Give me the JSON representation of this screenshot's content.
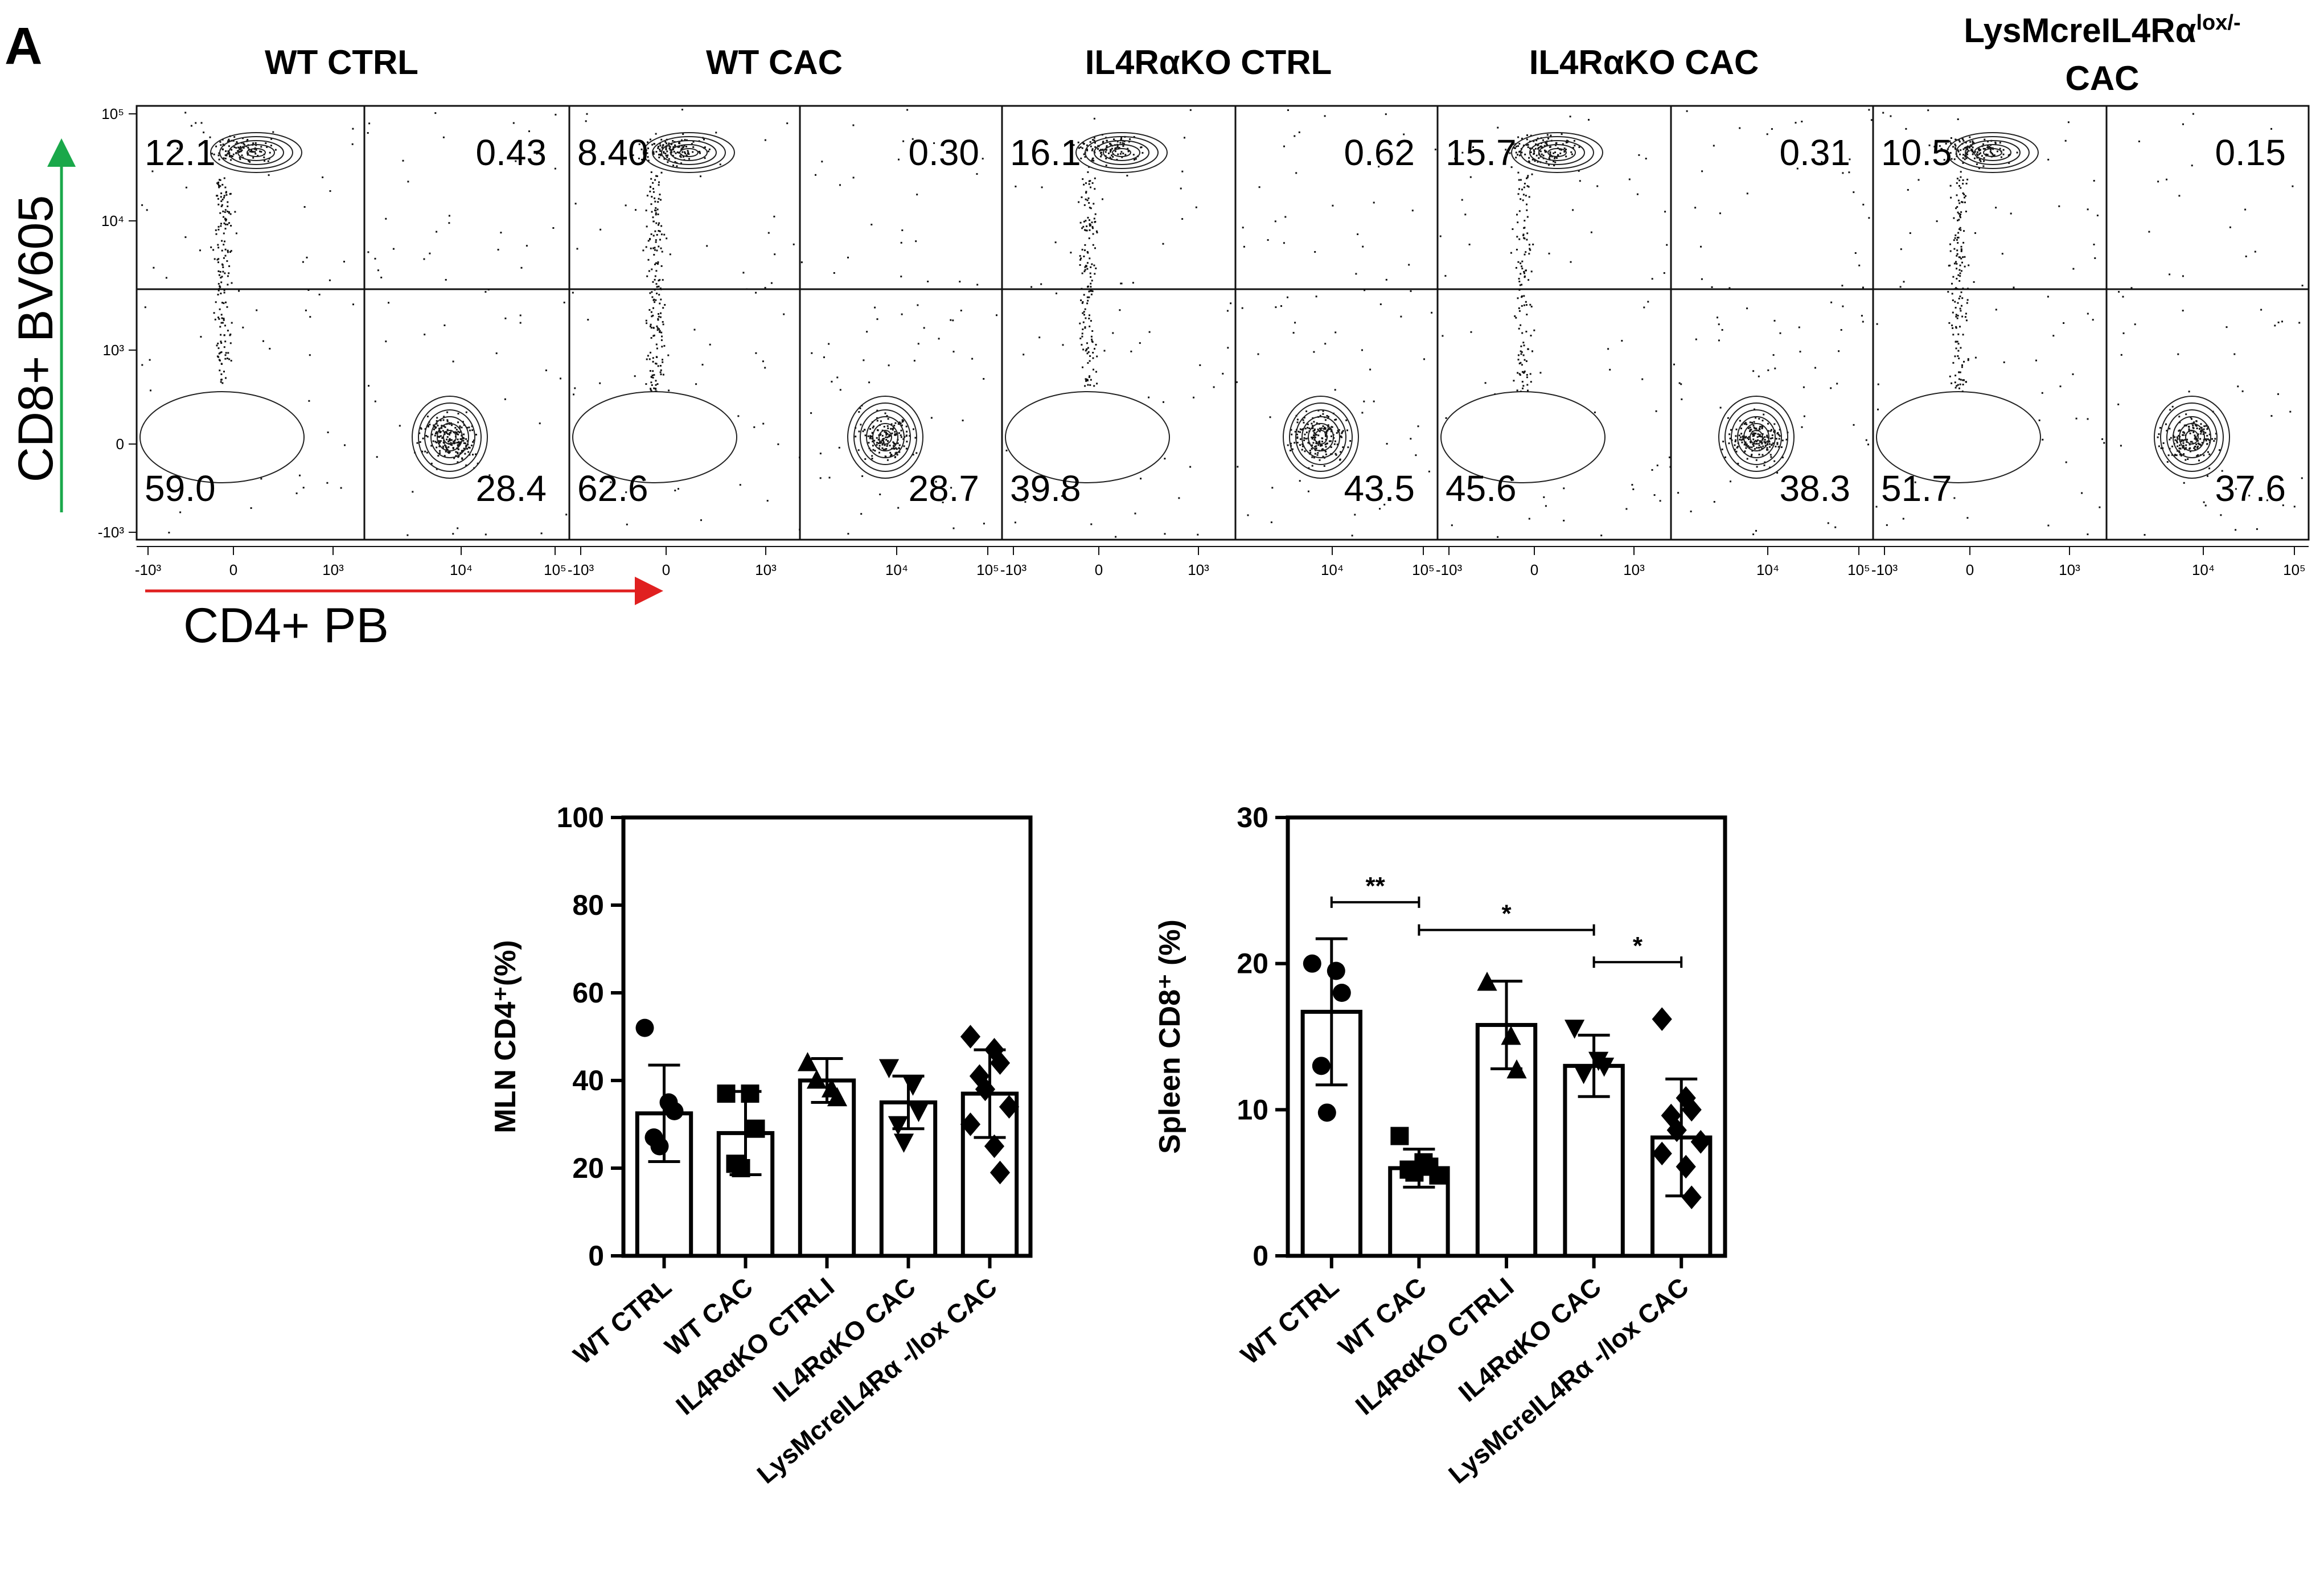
{
  "panel_letter": "A",
  "flow": {
    "y_axis_label": "CD8+ BV605",
    "x_axis_label": "CD4+ PB",
    "x_tick_labels": [
      "-10³",
      "0",
      "10³",
      "10⁴",
      "10⁵"
    ],
    "y_tick_labels": [
      "-10³",
      "0",
      "10³",
      "10⁴",
      "10⁵"
    ],
    "panels": [
      {
        "title": "WT CTRL",
        "q_ul": "12.1",
        "q_ur": "0.43",
        "q_ll": "59.0",
        "q_lr": "28.4"
      },
      {
        "title": "WT CAC",
        "q_ul": "8.40",
        "q_ur": "0.30",
        "q_ll": "62.6",
        "q_lr": "28.7"
      },
      {
        "title": "IL4RαKO CTRL",
        "q_ul": "16.1",
        "q_ur": "0.62",
        "q_ll": "39.8",
        "q_lr": "43.5"
      },
      {
        "title": "IL4RαKO CAC",
        "q_ul": "15.7",
        "q_ur": "0.31",
        "q_ll": "45.6",
        "q_lr": "38.3"
      },
      {
        "title_line1": "LysMcreIL4Rα",
        "title_sup": "lox/-",
        "title_line2": "CAC",
        "q_ul": "10.5",
        "q_ur": "0.15",
        "q_ll": "51.7",
        "q_lr": "37.6"
      }
    ]
  },
  "chart_data": [
    {
      "type": "bar",
      "title": "",
      "ylabel": "MLN CD4⁺(%)",
      "ylim": [
        0,
        100
      ],
      "yticks": [
        0,
        20,
        40,
        60,
        80,
        100
      ],
      "categories": [
        "WT CTRL",
        "WT CAC",
        "IL4RαKO CTRLI",
        "IL4RαKO CAC",
        "LysMcreIL4Rα -/lox CAC"
      ],
      "values": [
        32.5,
        28,
        40,
        35,
        37
      ],
      "errors": [
        11,
        9.5,
        5,
        6,
        10
      ],
      "markers": [
        "circle",
        "square",
        "triangle",
        "triangle-down",
        "diamond"
      ],
      "points": [
        [
          52,
          35,
          33,
          27,
          25
        ],
        [
          37,
          37,
          29,
          21,
          20
        ],
        [
          44,
          38,
          36,
          40
        ],
        [
          43,
          39,
          33,
          30,
          26
        ],
        [
          50,
          47,
          44,
          41,
          38,
          34,
          30,
          25,
          19
        ]
      ],
      "significance": []
    },
    {
      "type": "bar",
      "title": "",
      "ylabel": "Spleen CD8⁺ (%)",
      "ylim": [
        0,
        30
      ],
      "yticks": [
        0,
        10,
        20,
        30
      ],
      "categories": [
        "WT CTRL",
        "WT CAC",
        "IL4RαKO CTRLI",
        "IL4RαKO CAC",
        "LysMcreIL4Rα -/lox CAC"
      ],
      "values": [
        16.7,
        6,
        15.8,
        13,
        8.1
      ],
      "errors": [
        5,
        1.3,
        3,
        2.1,
        4
      ],
      "markers": [
        "circle",
        "square",
        "triangle",
        "triangle-down",
        "diamond"
      ],
      "points": [
        [
          20,
          19.5,
          18,
          13,
          9.8
        ],
        [
          8.2,
          6.4,
          6.1,
          5.9,
          5.7,
          5.5
        ],
        [
          18.7,
          15,
          12.7
        ],
        [
          15.6,
          13.4,
          13,
          12.5
        ],
        [
          16.2,
          10.8,
          10,
          9.6,
          8.6,
          7.8,
          7,
          6.1,
          4
        ]
      ],
      "significance": [
        {
          "from": 0,
          "to": 1,
          "label": "**",
          "y": 24.2
        },
        {
          "from": 1,
          "to": 3,
          "label": "*",
          "y": 22.3
        },
        {
          "from": 3,
          "to": 4,
          "label": "*",
          "y": 20.1
        }
      ]
    }
  ]
}
